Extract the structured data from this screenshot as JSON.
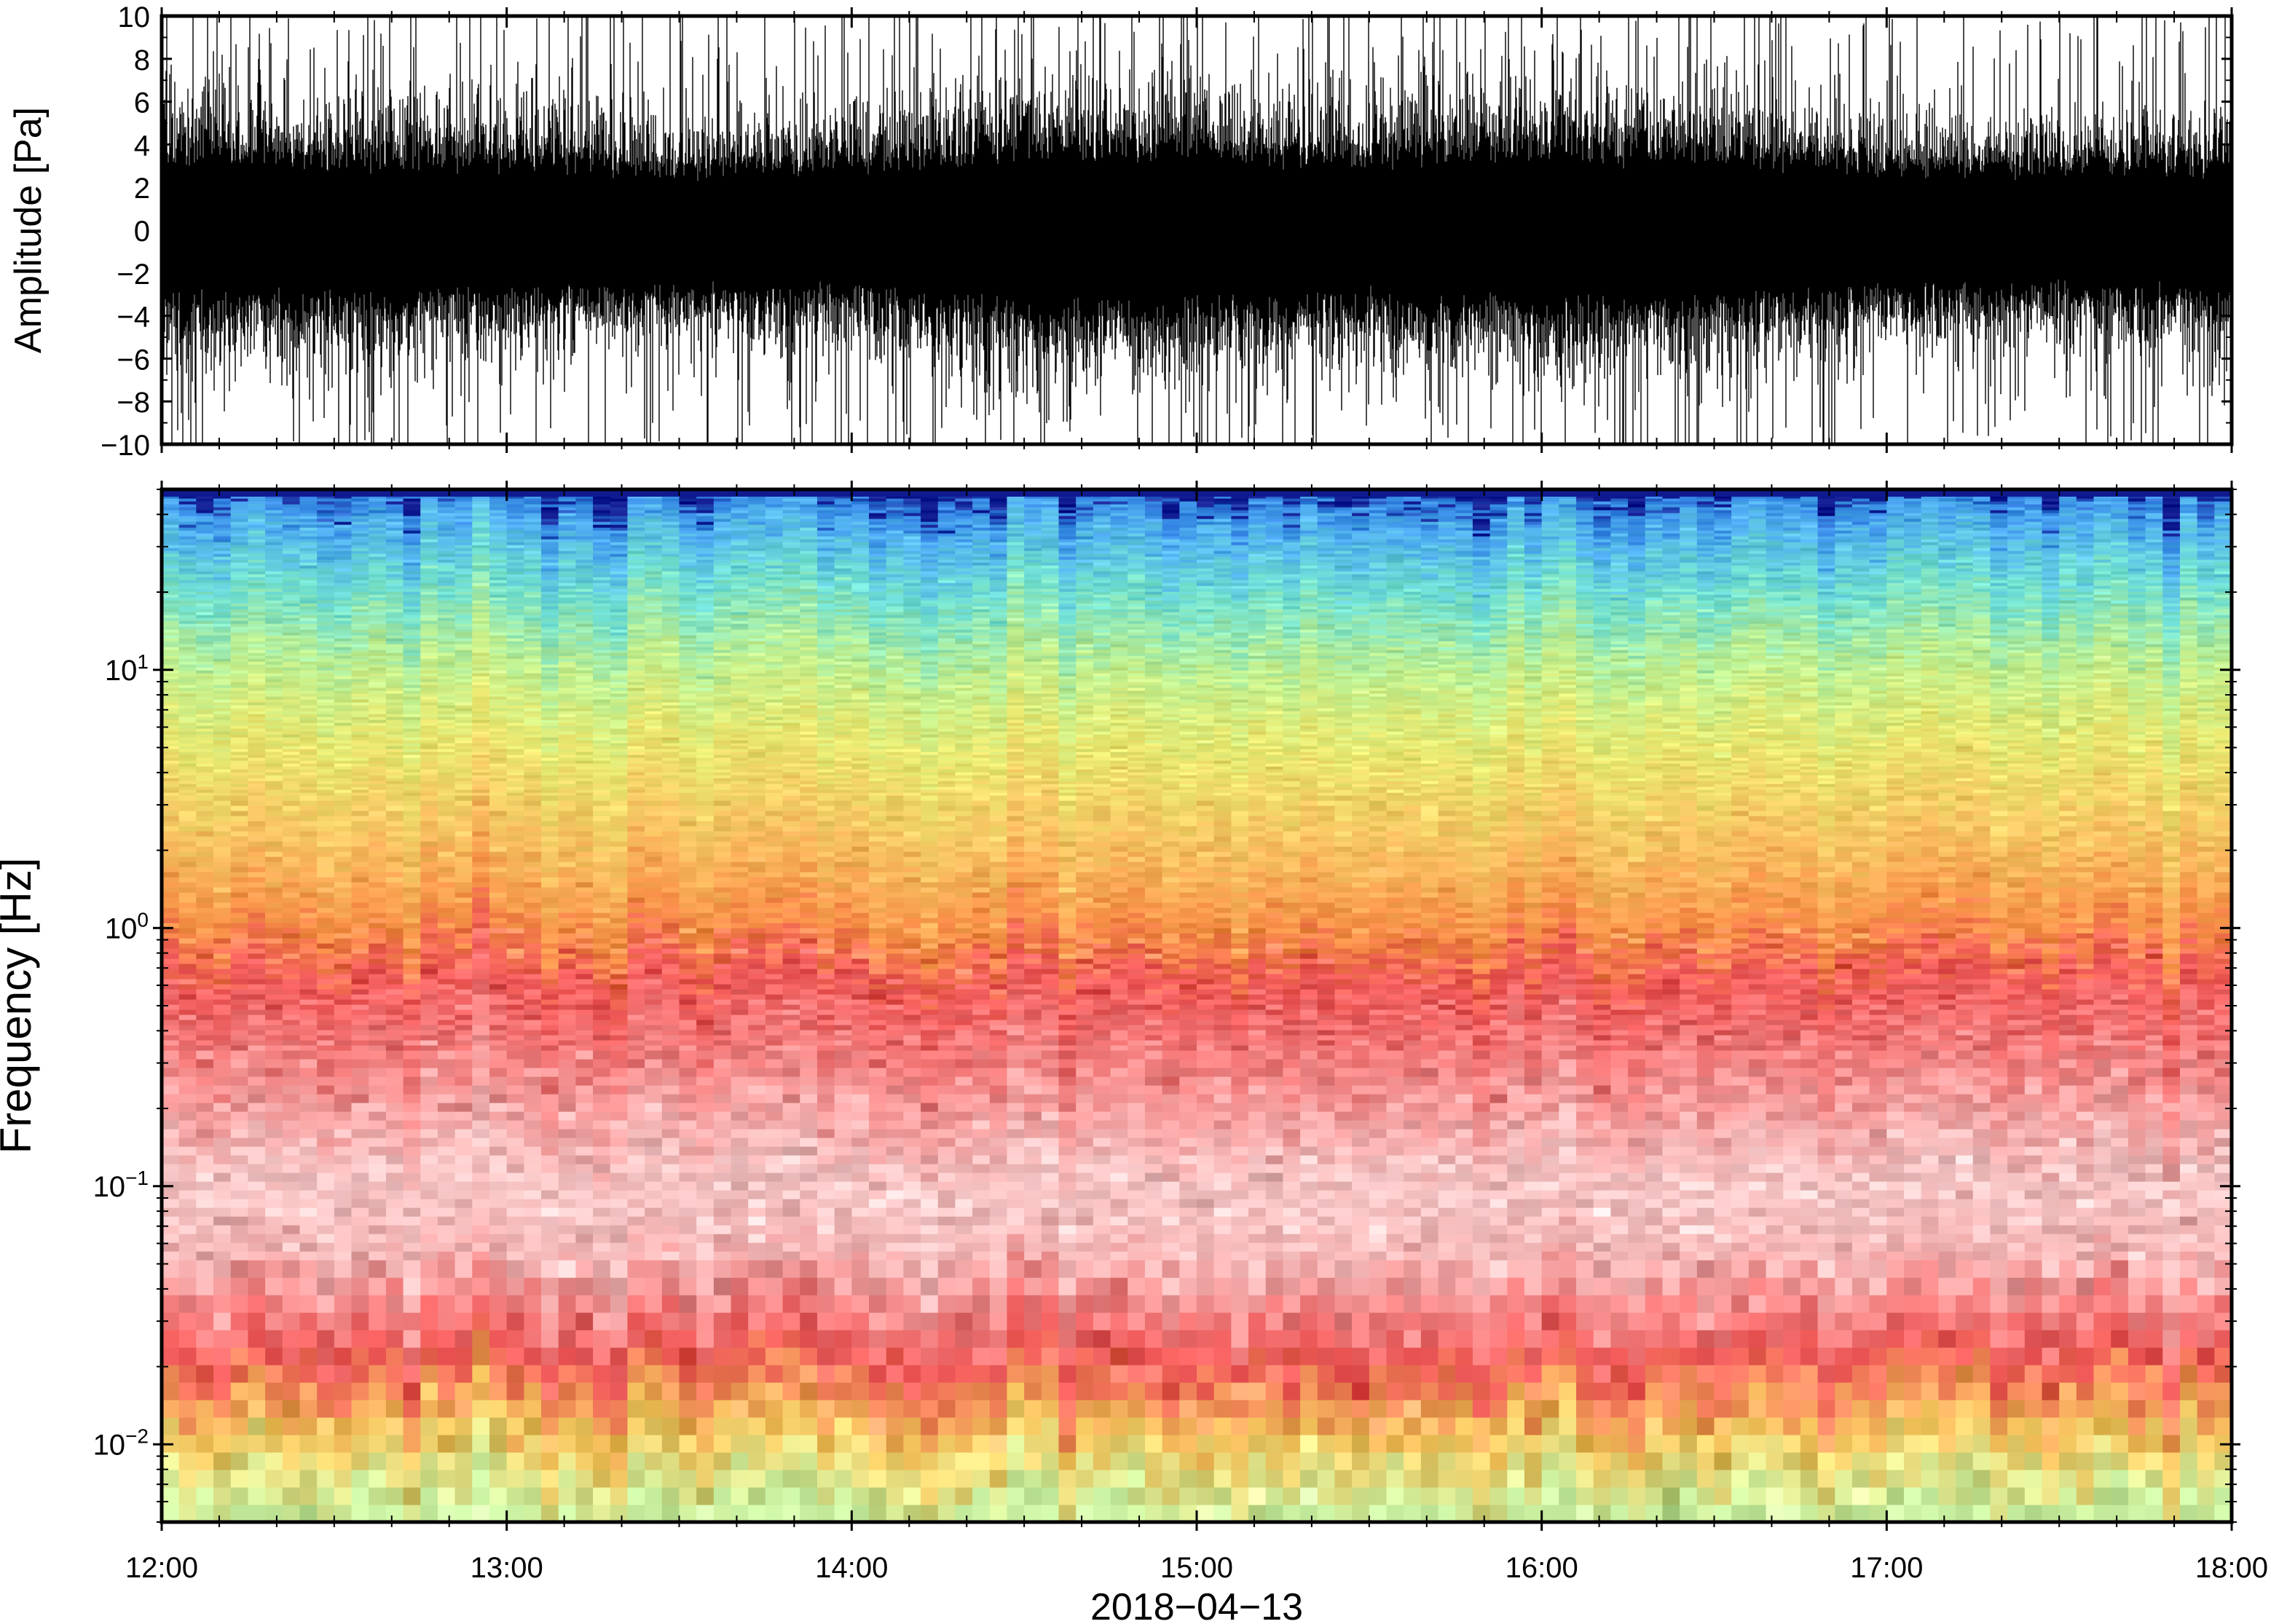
{
  "chart_data": [
    {
      "type": "line",
      "panel": "waveform",
      "title": "",
      "xlabel": "",
      "ylabel": "Amplitude [Pa]",
      "xlim": [
        "12:00",
        "18:00"
      ],
      "ylim": [
        -10,
        10
      ],
      "yticks": [
        "10",
        "8",
        "6",
        "4",
        "2",
        "0",
        "−2",
        "−4",
        "−6",
        "−8",
        "−10"
      ],
      "grid": false,
      "series": [
        {
          "color": "#000000",
          "envelope_by_half_hour": {
            "x": [
              "12:00",
              "12:30",
              "13:00",
              "13:30",
              "14:00",
              "14:30",
              "15:00",
              "15:30",
              "16:00",
              "16:30",
              "17:00",
              "17:30",
              "18:00"
            ],
            "dense_band_pa": [
              3.2,
              3.0,
              3.0,
              2.6,
              2.8,
              3.5,
              3.4,
              3.0,
              3.4,
              3.2,
              2.8,
              2.6,
              2.8
            ],
            "peak_pa": [
              10,
              10,
              10,
              10,
              10,
              10,
              10,
              10,
              10,
              10,
              10,
              10,
              10
            ]
          }
        }
      ]
    },
    {
      "type": "heatmap",
      "panel": "spectrogram",
      "title": "",
      "xlabel": "2018−04−13",
      "ylabel": "Frequency [Hz]",
      "x_ticks": [
        "12:00",
        "13:00",
        "14:00",
        "15:00",
        "16:00",
        "17:00",
        "18:00"
      ],
      "y_scale": "log",
      "ylim_hz": [
        0.005,
        50
      ],
      "y_ticks": [
        {
          "mantissa": "10",
          "exponent": "−2",
          "value": 0.01
        },
        {
          "mantissa": "10",
          "exponent": "−1",
          "value": 0.1
        },
        {
          "mantissa": "10",
          "exponent": "0",
          "value": 1
        },
        {
          "mantissa": "10",
          "exponent": "1",
          "value": 10
        }
      ],
      "colormap_stops": [
        "#a0f0a0",
        "#e8f080",
        "#f8b050",
        "#f06060",
        "#f8d0d0",
        "#f06060",
        "#f8a050",
        "#f0d070",
        "#d0f080",
        "#80e8c8",
        "#50c8f0",
        "#4090e0",
        "#1020a0"
      ],
      "band_profile_hz": [
        {
          "hz": 0.005,
          "color": "#c8f0a0"
        },
        {
          "hz": 0.01,
          "color": "#f8c860"
        },
        {
          "hz": 0.02,
          "color": "#f05858"
        },
        {
          "hz": 0.05,
          "color": "#f8b8b8"
        },
        {
          "hz": 0.1,
          "color": "#f8c8c8"
        },
        {
          "hz": 0.3,
          "color": "#f48080"
        },
        {
          "hz": 0.6,
          "color": "#f05858"
        },
        {
          "hz": 1.0,
          "color": "#f89048"
        },
        {
          "hz": 2.0,
          "color": "#f8c060"
        },
        {
          "hz": 5.0,
          "color": "#e8e870"
        },
        {
          "hz": 10.0,
          "color": "#c0f090"
        },
        {
          "hz": 20.0,
          "color": "#70e0d0"
        },
        {
          "hz": 35.0,
          "color": "#50b0f0"
        },
        {
          "hz": 45.0,
          "color": "#3080e0"
        },
        {
          "hz": 50.0,
          "color": "#101a90"
        }
      ]
    }
  ]
}
